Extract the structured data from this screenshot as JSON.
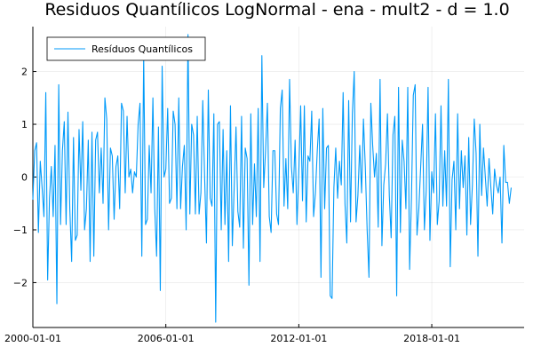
{
  "chart_data": {
    "type": "line",
    "title": "Residuos Quantílicos LogNormal - ena - mult2 - d = 1.0",
    "xlabel": "",
    "ylabel": "",
    "grid": true,
    "legend_position": "top-left",
    "line_color": "#009AF9",
    "x_range": [
      0,
      266
    ],
    "ylim": [
      -2.85,
      2.85
    ],
    "x_ticks": [
      {
        "label": "2000-01-01",
        "index": 0
      },
      {
        "label": "2006-01-01",
        "index": 72
      },
      {
        "label": "2012-01-01",
        "index": 144
      },
      {
        "label": "2018-01-01",
        "index": 216
      }
    ],
    "y_ticks": [
      {
        "label": "2",
        "value": 2
      },
      {
        "label": "1",
        "value": 1
      },
      {
        "label": "0",
        "value": 0
      },
      {
        "label": "−1",
        "value": -1
      },
      {
        "label": "−2",
        "value": -2
      }
    ],
    "series": [
      {
        "name": "Resíduos Quantílicos",
        "values": [
          -0.43,
          0.5,
          0.65,
          -1.05,
          0.3,
          -0.2,
          -0.75,
          1.6,
          -1.95,
          -0.4,
          0.2,
          -0.75,
          0.6,
          -2.4,
          1.75,
          -0.9,
          0.5,
          1.05,
          -0.9,
          1.23,
          -0.6,
          -1.6,
          0.75,
          -1.2,
          -1.1,
          0.9,
          -0.25,
          1.05,
          -1.0,
          -0.6,
          0.7,
          -1.6,
          0.85,
          -1.5,
          0.7,
          0.85,
          -0.3,
          0.55,
          -0.5,
          1.5,
          1.1,
          -1.0,
          0.55,
          0.4,
          -0.8,
          0.2,
          0.4,
          -0.6,
          1.4,
          1.25,
          -0.3,
          1.15,
          0.0,
          0.15,
          -0.3,
          0.1,
          0.0,
          1.0,
          1.4,
          -1.5,
          2.3,
          -0.9,
          -0.8,
          0.6,
          -0.3,
          1.5,
          -0.6,
          -1.5,
          0.95,
          -2.15,
          2.1,
          0.0,
          0.15,
          1.3,
          -0.5,
          -0.4,
          1.25,
          1.0,
          -0.6,
          1.5,
          -0.6,
          0.2,
          0.6,
          -1.0,
          2.7,
          -0.7,
          1.0,
          0.8,
          -0.7,
          1.15,
          -0.7,
          -0.3,
          1.45,
          0.0,
          -1.25,
          1.65,
          -0.4,
          -0.55,
          1.2,
          -2.75,
          1.0,
          1.05,
          -1.0,
          0.9,
          -0.9,
          0.5,
          -1.6,
          1.35,
          -1.3,
          -0.2,
          0.95,
          -0.65,
          -0.95,
          1.15,
          -1.35,
          0.55,
          0.35,
          -2.05,
          1.2,
          -0.9,
          0.25,
          -0.75,
          1.3,
          -1.6,
          2.3,
          -0.2,
          0.5,
          1.4,
          -0.75,
          -1.05,
          0.5,
          0.5,
          -0.7,
          -0.9,
          1.3,
          1.65,
          -0.55,
          0.35,
          -0.6,
          1.85,
          0.2,
          -0.3,
          0.7,
          -0.9,
          0.1,
          1.35,
          -0.45,
          1.35,
          -0.85,
          0.4,
          0.3,
          1.25,
          -0.75,
          -0.3,
          0.5,
          1.1,
          -1.9,
          1.3,
          -0.6,
          0.55,
          0.6,
          -2.25,
          -2.3,
          -0.2,
          0.55,
          -0.4,
          0.3,
          -0.15,
          1.6,
          -0.5,
          -1.25,
          1.45,
          -0.85,
          1.2,
          2.0,
          -0.85,
          -0.35,
          0.6,
          -0.3,
          1.1,
          0.2,
          -1.0,
          -1.9,
          1.4,
          0.6,
          0.0,
          0.45,
          -0.95,
          1.85,
          -1.3,
          -0.15,
          0.25,
          1.2,
          -0.35,
          -1.15,
          0.8,
          1.15,
          -2.25,
          1.7,
          -1.05,
          0.7,
          0.3,
          -0.6,
          1.7,
          -1.75,
          -0.4,
          1.55,
          1.75,
          -1.1,
          -0.6,
          0.2,
          1.0,
          -1.0,
          -0.25,
          1.7,
          -1.2,
          0.1,
          -0.3,
          1.2,
          -0.9,
          -0.45,
          1.35,
          -0.55,
          0.5,
          -0.55,
          1.85,
          -1.7,
          -0.05,
          0.3,
          -1.0,
          1.2,
          -0.6,
          0.5,
          -0.2,
          0.4,
          -1.1,
          0.75,
          -0.9,
          -0.15,
          1.1,
          0.45,
          -1.5,
          1.0,
          -0.35,
          0.55,
          0.0,
          -0.55,
          0.35,
          -0.2,
          -0.7,
          0.15,
          -0.15,
          -0.3,
          0.0,
          -1.25,
          0.6,
          -0.1,
          -0.1,
          -0.5,
          -0.2
        ]
      }
    ]
  }
}
